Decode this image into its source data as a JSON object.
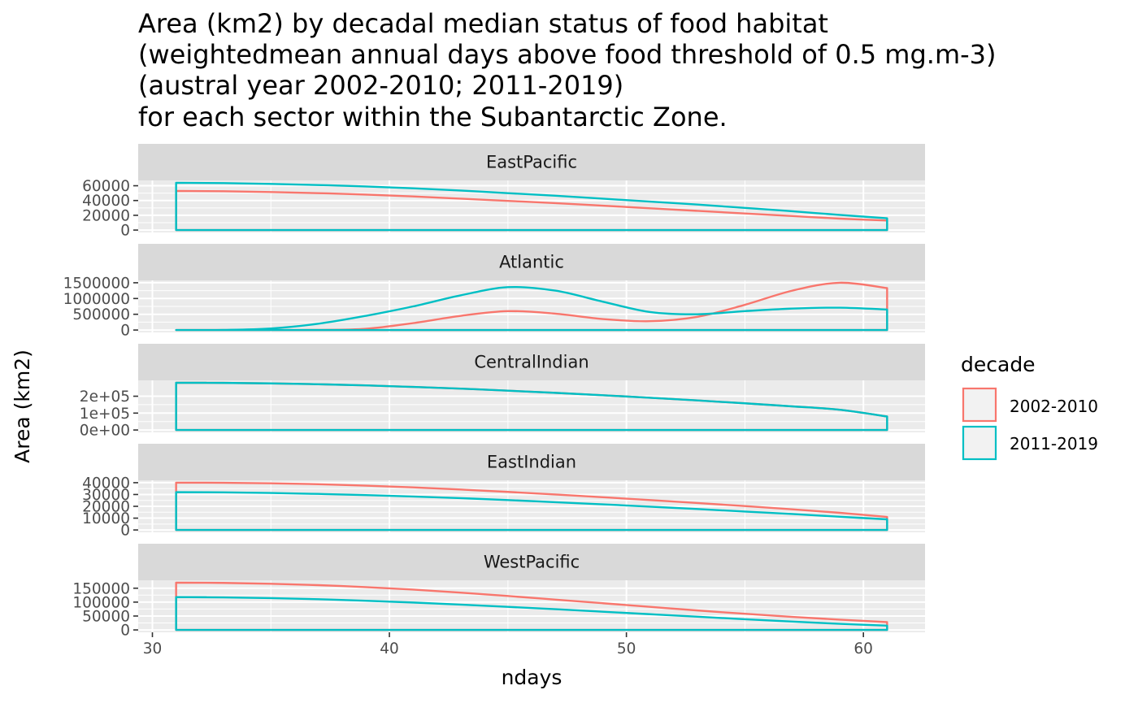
{
  "chart_data": {
    "type": "area",
    "title_lines": [
      "Area (km2) by decadal median status of food habitat",
      "(weightedmean annual days above food threshold of 0.5 mg.m-3)",
      "(austral year 2002-2010; 2011-2019)",
      "for each sector within the Subantarctic Zone."
    ],
    "xlabel": "ndays",
    "ylabel": "Area (km2)",
    "xlim": [
      29.4,
      62.6
    ],
    "x_ticks": [
      30,
      40,
      50,
      60
    ],
    "x_tick_labels": [
      "30",
      "40",
      "50",
      "60"
    ],
    "x": [
      31,
      33,
      35,
      37,
      39,
      41,
      43,
      45,
      47,
      49,
      51,
      53,
      55,
      57,
      59,
      61
    ],
    "legend": {
      "title": "decade",
      "placement": "right",
      "entries": [
        "2002-2010",
        "2011-2019"
      ]
    },
    "colors": {
      "2002-2010": "#f8766d",
      "2011-2019": "#00bfc4"
    },
    "grid": true,
    "panels": [
      {
        "name": "EastPacific",
        "ylim": [
          -3200,
          67200
        ],
        "y_ticks": [
          0,
          20000,
          40000,
          60000
        ],
        "y_tick_labels": [
          "0",
          "20000",
          "40000",
          "60000"
        ],
        "series": [
          {
            "name": "2002-2010",
            "values": [
              53000,
              52500,
              51500,
              50000,
              48000,
              45500,
              42500,
              39500,
              36500,
              33000,
              29500,
              26000,
              22500,
              19000,
              15500,
              13000
            ]
          },
          {
            "name": "2011-2019",
            "values": [
              64000,
              63500,
              62500,
              61000,
              59000,
              56500,
              53500,
              50000,
              46500,
              42500,
              38500,
              34500,
              30000,
              25500,
              20500,
              16000
            ]
          }
        ]
      },
      {
        "name": "Atlantic",
        "ylim": [
          -75000,
          1575000
        ],
        "y_ticks": [
          0,
          500000,
          1000000,
          1500000
        ],
        "y_tick_labels": [
          "0",
          "500000",
          "1000000",
          "1500000"
        ],
        "series": [
          {
            "name": "2002-2010",
            "values": [
              0,
              0,
              0,
              5000,
              40000,
              220000,
              450000,
              600000,
              520000,
              350000,
              280000,
              420000,
              800000,
              1250000,
              1500000,
              1330000
            ]
          },
          {
            "name": "2011-2019",
            "values": [
              0,
              5000,
              50000,
              200000,
              450000,
              750000,
              1100000,
              1360000,
              1250000,
              900000,
              570000,
              500000,
              600000,
              680000,
              710000,
              650000
            ]
          }
        ]
      },
      {
        "name": "CentralIndian",
        "ylim": [
          -14000,
          294000
        ],
        "y_ticks": [
          0,
          100000,
          200000
        ],
        "y_tick_labels": [
          "0e+00",
          "1e+05",
          "2e+05"
        ],
        "series": [
          {
            "name": "2002-2010",
            "values": [
              280000,
              279000,
              276000,
              271000,
              264000,
              255000,
              245000,
              233000,
              220000,
              206000,
              191000,
              175000,
              158000,
              140000,
              120000,
              80000
            ]
          },
          {
            "name": "2011-2019",
            "values": [
              280000,
              279000,
              276000,
              271000,
              264000,
              255000,
              245000,
              233000,
              220000,
              206000,
              191000,
              175000,
              158000,
              140000,
              120000,
              80000
            ]
          }
        ]
      },
      {
        "name": "EastIndian",
        "ylim": [
          -2000,
          42000
        ],
        "y_ticks": [
          0,
          10000,
          20000,
          30000,
          40000
        ],
        "y_tick_labels": [
          "0",
          "10000",
          "20000",
          "30000",
          "40000"
        ],
        "series": [
          {
            "name": "2002-2010",
            "values": [
              40000,
              39900,
              39500,
              38700,
              37500,
              36000,
              34200,
              32200,
              30000,
              27700,
              25300,
              22800,
              20200,
              17500,
              14500,
              11000
            ]
          },
          {
            "name": "2011-2019",
            "values": [
              32000,
              31800,
              31300,
              30500,
              29500,
              28300,
              26900,
              25300,
              23500,
              21700,
              19700,
              17700,
              15600,
              13500,
              11200,
              9000
            ]
          }
        ]
      },
      {
        "name": "WestPacific",
        "ylim": [
          -8500,
          178500
        ],
        "y_ticks": [
          0,
          50000,
          100000,
          150000
        ],
        "y_tick_labels": [
          "0",
          "50000",
          "100000",
          "150000"
        ],
        "series": [
          {
            "name": "2002-2010",
            "values": [
              170000,
              169000,
              166000,
              161000,
              154000,
              145000,
              134000,
              122000,
              109000,
              96000,
              83000,
              70000,
              58000,
              47000,
              37000,
              28000
            ]
          },
          {
            "name": "2011-2019",
            "values": [
              118000,
              117000,
              114500,
              110500,
              105000,
              98500,
              91000,
              83000,
              74500,
              65500,
              56500,
              47500,
              38500,
              30000,
              22000,
              15500
            ]
          }
        ]
      }
    ]
  }
}
